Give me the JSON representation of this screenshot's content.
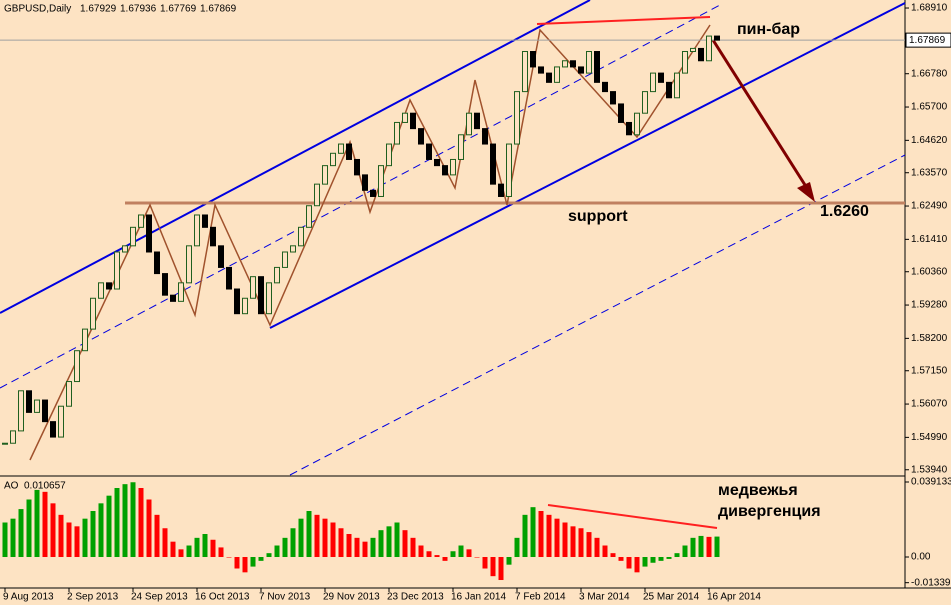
{
  "chart_data": {
    "type": "candlestick",
    "title": "GBPUSD,Daily",
    "ohlc_header": [
      1.67929,
      1.67936,
      1.67769,
      1.67869
    ],
    "categories": [
      "9 Aug 2013",
      null,
      null,
      null,
      null,
      null,
      null,
      null,
      "2 Sep 2013",
      null,
      null,
      null,
      null,
      null,
      null,
      null,
      "24 Sep 2013",
      null,
      null,
      null,
      null,
      null,
      null,
      null,
      "16 Oct 2013",
      null,
      null,
      null,
      null,
      null,
      null,
      null,
      "7 Nov 2013",
      null,
      null,
      null,
      null,
      null,
      null,
      null,
      "29 Nov 2013",
      null,
      null,
      null,
      null,
      null,
      null,
      null,
      "23 Dec 2013",
      null,
      null,
      null,
      null,
      null,
      null,
      null,
      "16 Jan 2014",
      null,
      null,
      null,
      null,
      null,
      null,
      null,
      "7 Feb 2014",
      null,
      null,
      null,
      null,
      null,
      null,
      null,
      "3 Mar 2014",
      null,
      null,
      null,
      null,
      null,
      null,
      null,
      "25 Mar 2014",
      null,
      null,
      null,
      null,
      null,
      null,
      null,
      "16 Apr 2014",
      null
    ],
    "close": [
      1.548,
      1.552,
      1.565,
      1.558,
      1.562,
      1.555,
      1.55,
      1.56,
      1.568,
      1.578,
      1.585,
      1.595,
      1.6,
      1.598,
      1.61,
      1.612,
      1.618,
      1.622,
      1.61,
      1.603,
      1.596,
      1.594,
      1.6,
      1.612,
      1.622,
      1.618,
      1.612,
      1.605,
      1.598,
      1.59,
      1.595,
      1.602,
      1.59,
      1.6,
      1.605,
      1.61,
      1.612,
      1.618,
      1.625,
      1.632,
      1.638,
      1.642,
      1.645,
      1.64,
      1.635,
      1.63,
      1.628,
      1.638,
      1.645,
      1.652,
      1.655,
      1.65,
      1.645,
      1.64,
      1.638,
      1.635,
      1.64,
      1.648,
      1.655,
      1.65,
      1.645,
      1.632,
      1.628,
      1.645,
      1.662,
      1.675,
      1.67,
      1.668,
      1.665,
      1.67,
      1.672,
      1.67,
      1.668,
      1.675,
      1.665,
      1.662,
      1.658,
      1.652,
      1.648,
      1.655,
      1.662,
      1.668,
      1.665,
      1.66,
      1.668,
      1.675,
      1.676,
      1.672,
      1.68,
      1.67869
    ],
    "color_up": "#1f5f1f",
    "color_down": "#000000",
    "ylim": [
      1.5377,
      1.6917
    ],
    "yticks": [
      {
        "value": 1.6891,
        "label": "1.68910"
      },
      {
        "value": 1.6678,
        "label": "1.66780"
      },
      {
        "value": 1.657,
        "label": "1.65700"
      },
      {
        "value": 1.6462,
        "label": "1.64620"
      },
      {
        "value": 1.6357,
        "label": "1.63570"
      },
      {
        "value": 1.6249,
        "label": "1.62490"
      },
      {
        "value": 1.6141,
        "label": "1.61410"
      },
      {
        "value": 1.6036,
        "label": "1.60360"
      },
      {
        "value": 1.5928,
        "label": "1.59280"
      },
      {
        "value": 1.582,
        "label": "1.58200"
      },
      {
        "value": 1.5715,
        "label": "1.57150"
      },
      {
        "value": 1.5607,
        "label": "1.56070"
      },
      {
        "value": 1.5499,
        "label": "1.54990"
      },
      {
        "value": 1.5394,
        "label": "1.53940"
      }
    ],
    "current_price": 1.67869,
    "annotations": [
      "пин-бар",
      "support",
      "1.6260",
      "медвежья",
      "дивергенция"
    ],
    "indicator": {
      "type": "bar",
      "title": "AO",
      "last_value": 0.010657,
      "values": [
        0.018,
        0.02,
        0.025,
        0.03,
        0.035,
        0.034,
        0.028,
        0.022,
        0.018,
        0.016,
        0.02,
        0.024,
        0.028,
        0.032,
        0.036,
        0.038,
        0.039,
        0.036,
        0.03,
        0.022,
        0.015,
        0.008,
        0.004,
        0.006,
        0.01,
        0.012,
        0.009,
        0.005,
        0.0,
        -0.006,
        -0.008,
        -0.005,
        -0.002,
        0.002,
        0.006,
        0.01,
        0.015,
        0.02,
        0.024,
        0.022,
        0.02,
        0.018,
        0.015,
        0.012,
        0.01,
        0.008,
        0.01,
        0.014,
        0.016,
        0.018,
        0.014,
        0.01,
        0.006,
        0.003,
        0.001,
        -0.002,
        0.003,
        0.006,
        0.004,
        0.0,
        -0.006,
        -0.01,
        -0.012,
        -0.004,
        0.01,
        0.022,
        0.026,
        0.024,
        0.022,
        0.02,
        0.018,
        0.016,
        0.015,
        0.013,
        0.01,
        0.006,
        0.002,
        -0.002,
        -0.006,
        -0.008,
        -0.005,
        -0.003,
        -0.002,
        -0.001,
        0.002,
        0.006,
        0.01,
        0.011,
        0.0105,
        0.010657
      ],
      "color_up": "#00a000",
      "color_down": "#ff0000",
      "y2lim": [
        -0.01617,
        0.04174
      ],
      "y2ticks": [
        0.039133,
        {
          "value": 0,
          "label": "0.00"
        },
        -0.013395
      ]
    }
  }
}
